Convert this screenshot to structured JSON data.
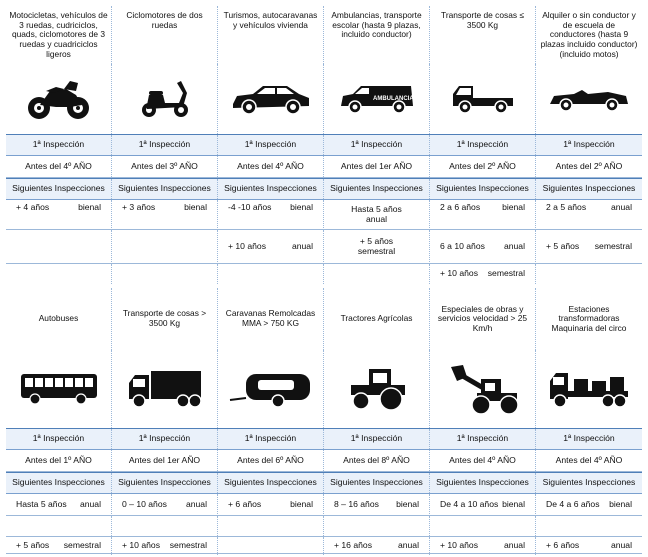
{
  "top": {
    "headers": [
      "Motocicletas, vehículos de 3 ruedas, cudriciclos, quads, ciclomotores de 3 ruedas y cuadriciclos ligeros",
      "Ciclomotores de dos ruedas",
      "Turismos, autocaravanas y vehículos vivienda",
      "Ambulancias, transporte escolar (hasta 9 plazas, incluido conductor)",
      "Transporte de cosas ≤ 3500 Kg",
      "Alquiler o sin conductor y de escuela de conductores (hasta 9 plazas incluido conductor) (incluido motos)"
    ],
    "icons": [
      "motorcycle-icon",
      "scooter-icon",
      "car-icon",
      "ambulance-icon",
      "pickup-truck-icon",
      "convertible-car-icon"
    ],
    "ambulance_text": "AMBULANCIA",
    "primera": [
      "1ª Inspección",
      "1ª Inspección",
      "1ª Inspección",
      "1ª Inspección",
      "1ª Inspección",
      "1ª Inspección"
    ],
    "antes": [
      "Antes del 4º AÑO",
      "Antes del 3º AÑO",
      "Antes del 4º AÑO",
      "Antes del 1er AÑO",
      "Antes del 2º AÑO",
      "Antes del 2º AÑO"
    ],
    "siguientes": [
      "Siguientes Inspecciones",
      "Siguientes Inspecciones",
      "Siguientes Inspecciones",
      "Siguientes Inspecciones",
      "Siguientes Inspecciones",
      "Siguientes Inspecciones"
    ],
    "row1": [
      [
        "+ 4 años",
        "bienal"
      ],
      [
        "+ 3 años",
        "bienal"
      ],
      [
        "-4 -10 años",
        "bienal"
      ],
      [
        "Hasta 5 años",
        "anual"
      ],
      [
        "2 a 6 años",
        "bienal"
      ],
      [
        "2 a 5 años",
        "anual"
      ]
    ],
    "row2": [
      [
        "",
        ""
      ],
      [
        "",
        ""
      ],
      [
        "+ 10 años",
        "anual"
      ],
      [
        "+ 5 años",
        "semestral"
      ],
      [
        "6 a 10 años",
        "anual"
      ],
      [
        "+ 5 años",
        "semestral"
      ]
    ],
    "row3": [
      [
        "",
        ""
      ],
      [
        "",
        ""
      ],
      [
        "",
        ""
      ],
      [
        "",
        ""
      ],
      [
        "+ 10 años",
        "semestral"
      ],
      [
        "",
        ""
      ]
    ]
  },
  "bottom": {
    "headers": [
      "Autobuses",
      "Transporte de cosas > 3500 Kg",
      "Caravanas Remolcadas MMA > 750 KG",
      "Tractores Agrícolas",
      "Especiales de obras y servicios velocidad > 25 Km/h",
      "Estaciones transformadoras Maquinaria del circo"
    ],
    "icons": [
      "bus-icon",
      "truck-icon",
      "caravan-icon",
      "tractor-icon",
      "loader-icon",
      "flatbed-truck-icon"
    ],
    "primera": [
      "1ª Inspección",
      "1ª Inspección",
      "1ª Inspección",
      "1ª Inspección",
      "1ª Inspección",
      "1ª Inspección"
    ],
    "antes": [
      "Antes del 1º AÑO",
      "Antes del 1er AÑO",
      "Antes del 6º AÑO",
      "Antes del 8º AÑO",
      "Antes del 4º AÑO",
      "Antes del 4º AÑO"
    ],
    "siguientes": [
      "Siguientes Inspecciones",
      "Siguientes Inspecciones",
      "Siguientes Inspecciones",
      "Siguientes Inspecciones",
      "Siguientes Inspecciones",
      "Siguientes Inspecciones"
    ],
    "row1": [
      [
        "Hasta 5 años",
        "anual"
      ],
      [
        "0 – 10 años",
        "anual"
      ],
      [
        "+ 6 años",
        "bienal"
      ],
      [
        "8 – 16 años",
        "bienal"
      ],
      [
        "De 4 a 10 años",
        "bienal"
      ],
      [
        "De 4 a 6 años",
        "bienal"
      ]
    ],
    "row2": [
      [
        "",
        ""
      ],
      [
        "",
        ""
      ],
      [
        "",
        ""
      ],
      [
        "",
        ""
      ],
      [
        "",
        ""
      ],
      [
        "",
        ""
      ]
    ],
    "row3": [
      [
        "+ 5 años",
        "semestral"
      ],
      [
        "+ 10 años",
        "semestral"
      ],
      [
        "",
        ""
      ],
      [
        "+ 16 años",
        "anual"
      ],
      [
        "+ 10 años",
        "anual"
      ],
      [
        "+ 6 años",
        "anual"
      ]
    ]
  }
}
